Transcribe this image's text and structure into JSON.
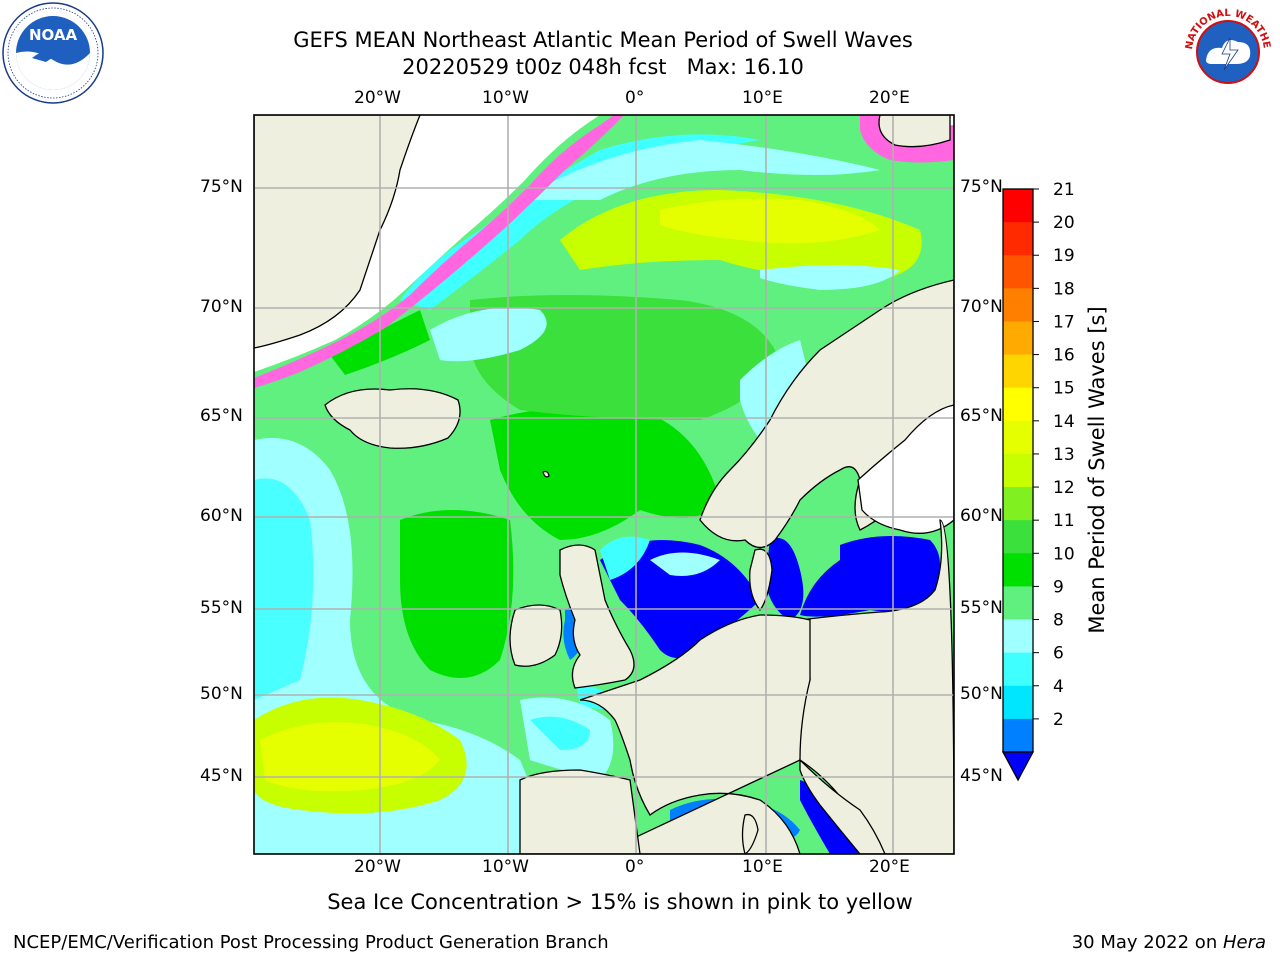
{
  "title_line1": "GEFS MEAN Northeast Atlantic Mean Period of Swell Waves",
  "title_line2": "20220529 t00z 048h fcst   Max: 16.10",
  "top_lon_labels": [
    "20°W",
    "10°W",
    "0°",
    "10°E",
    "20°E"
  ],
  "bottom_lon_labels": [
    "20°W",
    "10°W",
    "0°",
    "10°E",
    "20°E"
  ],
  "lat_labels": [
    "75°N",
    "70°N",
    "65°N",
    "60°N",
    "55°N",
    "50°N",
    "45°N"
  ],
  "colorbar": {
    "label": "Mean Period of Swell Waves [s]",
    "ticks": [
      "21",
      "20",
      "19",
      "18",
      "17",
      "16",
      "15",
      "14",
      "13",
      "12",
      "11",
      "10",
      "9",
      "8",
      "6",
      "4",
      "2"
    ],
    "colors": [
      "#ff0000",
      "#ff2a00",
      "#ff5500",
      "#ff8000",
      "#ffaa00",
      "#ffd500",
      "#ffff00",
      "#e6ff00",
      "#c8ff00",
      "#80f020",
      "#3ce03c",
      "#00e000",
      "#60f080",
      "#a0ffff",
      "#40ffff",
      "#00e6ff",
      "#0080ff",
      "#0000ff"
    ]
  },
  "colors": {
    "land": "#efefdf",
    "ice_pink": "#ff66e0",
    "grid": "#b0b0b0"
  },
  "caption": "Sea Ice Concentration > 15% is shown in pink to yellow",
  "footer_left": "NCEP/EMC/Verification Post Processing Product Generation Branch",
  "footer_right_prefix": "30 May 2022 on ",
  "footer_right_host": "Hera",
  "logos": {
    "noaa_text": "NOAA",
    "nws_text": "NATIONAL WEATHER SERVICE"
  }
}
